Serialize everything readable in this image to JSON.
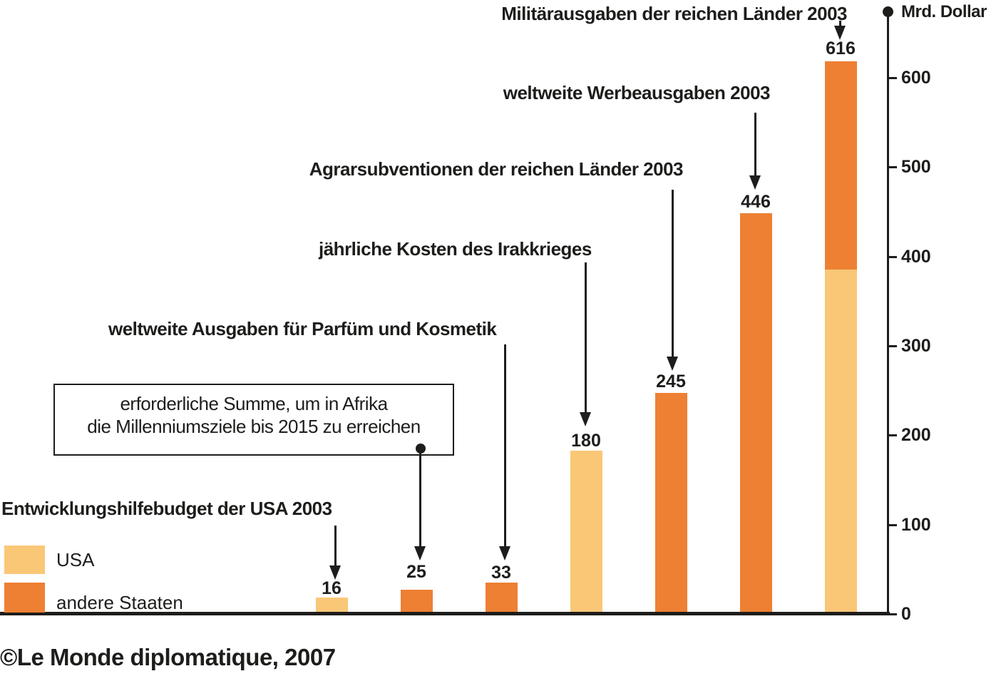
{
  "chart_data": {
    "type": "bar",
    "title": "",
    "ylabel": "Mrd. Dollar",
    "unit_label": "Mrd. Dollar",
    "ylim": [
      0,
      650
    ],
    "yticks": [
      0,
      100,
      200,
      300,
      400,
      500,
      600
    ],
    "grid": false,
    "legend_position": "bottom-left",
    "series_colors": {
      "USA": "#FAC777",
      "andere Staaten": "#EE8033"
    },
    "ink_color": "#1d1d1b",
    "legend": [
      {
        "label": "USA",
        "color": "#FAC777"
      },
      {
        "label": "andere Staaten",
        "color": "#EE8033"
      }
    ],
    "bars": [
      {
        "annotation": "Entwicklungshilfebudget der USA 2003",
        "value_label": "16",
        "total": 16,
        "segments": [
          {
            "series": "USA",
            "value": 16
          }
        ]
      },
      {
        "annotation": "erforderliche Summe, um in Afrika\ndie Millenniumsziele bis 2015 zu erreichen",
        "value_label": "25",
        "total": 25,
        "segments": [
          {
            "series": "andere Staaten",
            "value": 25
          }
        ]
      },
      {
        "annotation": "weltweite Ausgaben für Parfüm und Kosmetik",
        "value_label": "33",
        "total": 33,
        "segments": [
          {
            "series": "andere Staaten",
            "value": 33
          }
        ]
      },
      {
        "annotation": "jährliche Kosten des Irakkrieges",
        "value_label": "180",
        "total": 180,
        "segments": [
          {
            "series": "USA",
            "value": 180
          }
        ]
      },
      {
        "annotation": "Agrarsubventionen der reichen Länder 2003",
        "value_label": "245",
        "total": 245,
        "segments": [
          {
            "series": "andere Staaten",
            "value": 245
          }
        ]
      },
      {
        "annotation": "weltweite Werbeausgaben 2003",
        "value_label": "446",
        "total": 446,
        "segments": [
          {
            "series": "andere Staaten",
            "value": 446
          }
        ]
      },
      {
        "annotation": "Militärausgaben der reichen Länder 2003",
        "value_label": "616",
        "total": 616,
        "segments": [
          {
            "series": "USA",
            "value": 383
          },
          {
            "series": "andere Staaten",
            "value": 233
          }
        ]
      }
    ]
  },
  "footer": {
    "copyright": "©Le Monde diplomatique, 2007"
  }
}
